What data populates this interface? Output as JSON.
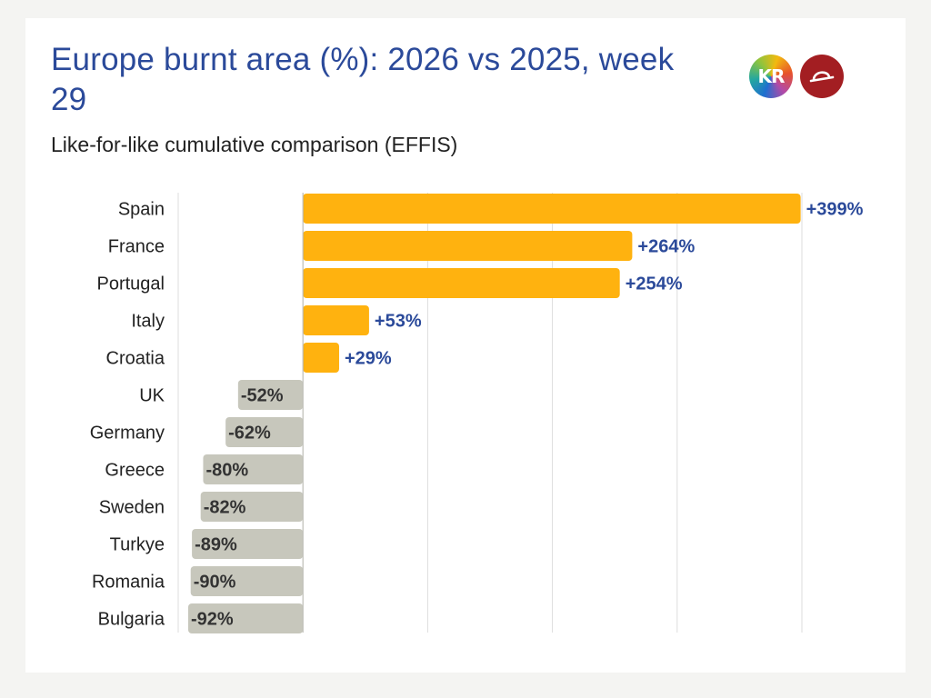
{
  "header": {
    "title": "Europe burnt area (%): 2026 vs 2025, week 29",
    "subtitle": "Like-for-like cumulative comparison (EFFIS)"
  },
  "logos": [
    {
      "name": "kr-logo",
      "text": "KR",
      "icon": "kr-logo-icon"
    },
    {
      "name": "red-round-logo",
      "icon": "hat-brim-icon"
    }
  ],
  "colors": {
    "positive_bar": "#FFB20F",
    "negative_bar": "#C7C7BC",
    "positive_label": "#2B4A9A",
    "negative_label": "#333333",
    "grid": "#DDDDDD",
    "axis": "#BDBDB6"
  },
  "chart_data": {
    "type": "bar",
    "orientation": "horizontal",
    "title": "Europe burnt area (%): 2026 vs 2025, week 29",
    "subtitle": "Like-for-like cumulative comparison (EFFIS)",
    "categories": [
      "Spain",
      "France",
      "Portugal",
      "Italy",
      "Croatia",
      "UK",
      "Germany",
      "Greece",
      "Sweden",
      "Turkye",
      "Romania",
      "Bulgaria"
    ],
    "values": [
      399,
      264,
      254,
      53,
      29,
      -52,
      -62,
      -80,
      -82,
      -89,
      -90,
      -92
    ],
    "labels": [
      "+399%",
      "+264%",
      "+254%",
      "+53%",
      "+29%",
      "-52%",
      "-62%",
      "-80%",
      "-82%",
      "-89%",
      "-90%",
      "-92%"
    ],
    "xlim": [
      -100,
      400
    ],
    "gridlines": [
      -100,
      0,
      100,
      200,
      300,
      400
    ],
    "grid": true,
    "legend": false,
    "xlabel": "",
    "ylabel": ""
  }
}
